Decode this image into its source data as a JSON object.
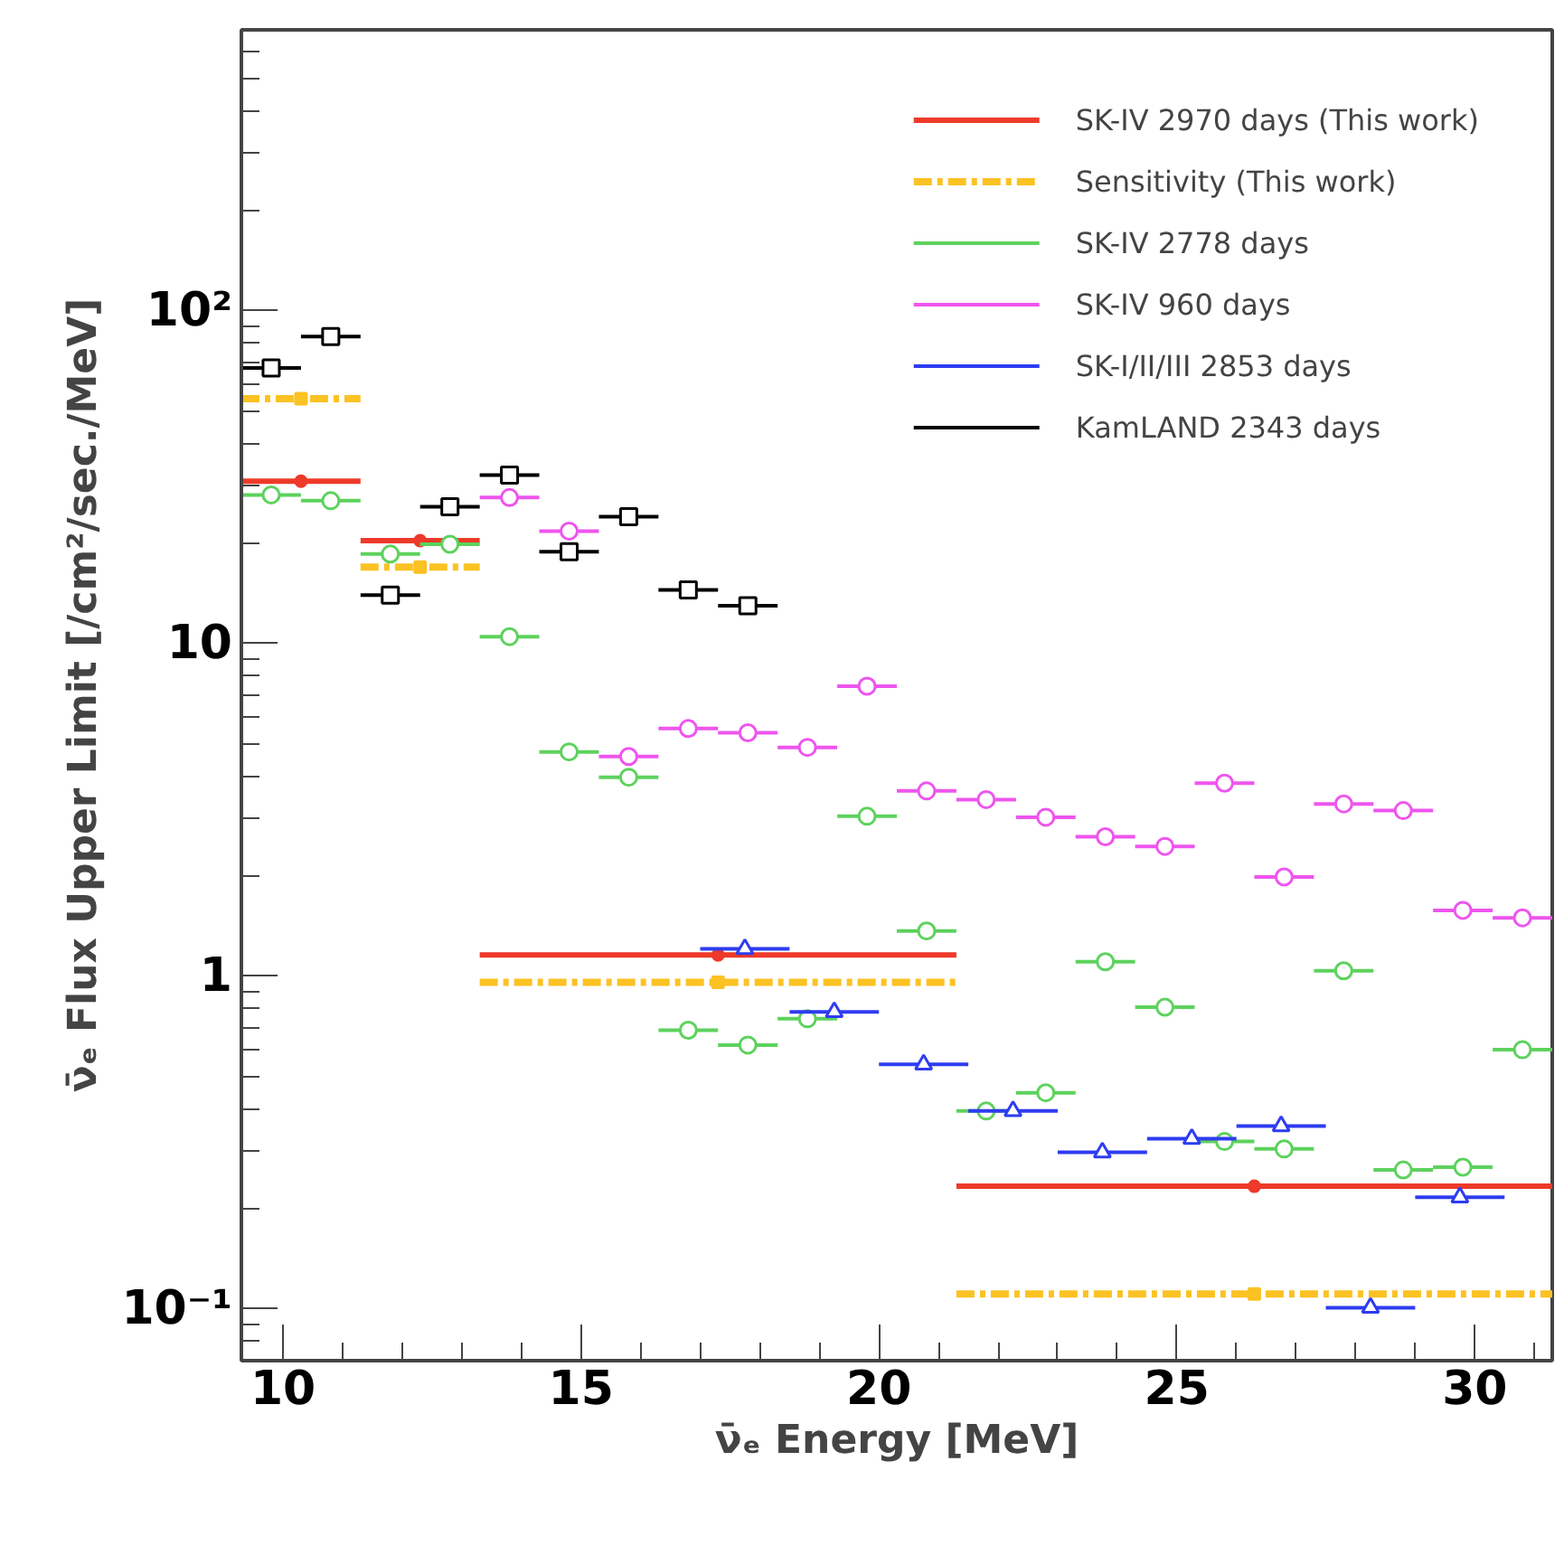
{
  "chart_data": {
    "type": "scatter",
    "xlabel": "ν̄ₑ Energy [MeV]",
    "ylabel": "ν̄ₑ Flux Upper Limit [/cm²/sec./MeV]",
    "log": "y",
    "xlim": [
      9.3,
      31.3
    ],
    "ylim": [
      0.07,
      700
    ],
    "xticks": [
      10,
      15,
      20,
      25,
      30
    ],
    "yticks": [
      {
        "value": 0.1,
        "label": "10⁻¹"
      },
      1,
      10,
      {
        "value": 100,
        "label": "10²"
      }
    ],
    "grid": false,
    "legend": "top right",
    "series": [
      {
        "name": "SK-IV 2970 days (This work)",
        "color": "#ee3a2a",
        "marker": "circle",
        "line_style": "solid",
        "x": [
          10.3,
          12.3,
          17.3,
          26.3
        ],
        "xerrors": [
          1,
          1,
          4,
          5
        ],
        "values": [
          30.8,
          20.4,
          1.16,
          0.234
        ]
      },
      {
        "name": "Sensitivity (This work)",
        "color": "#fbc223",
        "marker": "square",
        "line_style": "dashed",
        "x": [
          10.3,
          12.3,
          17.3,
          26.3
        ],
        "xerrors": [
          1,
          1,
          4,
          5
        ],
        "values": [
          54.5,
          17.0,
          0.96,
          0.111
        ]
      },
      {
        "name": "SK-IV 2778 days",
        "color": "#5dd25d",
        "marker": "circle",
        "line_style": "solid",
        "x": [
          9.8,
          10.8,
          11.8,
          12.8,
          13.8,
          14.8,
          15.8,
          16.8,
          17.8,
          18.8,
          19.8,
          20.8,
          21.8,
          22.8,
          23.8,
          24.8,
          25.8,
          26.8,
          27.8,
          28.8,
          29.8,
          30.8
        ],
        "xerrors": [
          0.5,
          0.5,
          0.5,
          0.5,
          0.5,
          0.5,
          0.5,
          0.5,
          0.5,
          0.5,
          0.5,
          0.5,
          0.5,
          0.5,
          0.5,
          0.5,
          0.5,
          0.5,
          0.5,
          0.5,
          0.5,
          0.5
        ],
        "values": [
          28.0,
          26.9,
          18.6,
          19.9,
          10.5,
          4.73,
          3.97,
          0.689,
          0.622,
          0.746,
          3.03,
          1.37,
          0.394,
          0.447,
          1.107,
          0.808,
          0.319,
          0.303,
          1.04,
          0.262,
          0.267,
          0.602
        ]
      },
      {
        "name": "SK-IV 960 days",
        "color": "#ee55ee",
        "marker": "circle",
        "line_style": "solid",
        "x": [
          13.8,
          14.8,
          15.8,
          16.8,
          17.8,
          18.8,
          19.8,
          20.8,
          21.8,
          22.8,
          23.8,
          24.8,
          25.8,
          26.8,
          27.8,
          28.8,
          29.8,
          30.8
        ],
        "xerrors": [
          0.5,
          0.5,
          0.5,
          0.5,
          0.5,
          0.5,
          0.5,
          0.5,
          0.5,
          0.5,
          0.5,
          0.5,
          0.5,
          0.5,
          0.5,
          0.5,
          0.5,
          0.5
        ],
        "values": [
          27.5,
          21.8,
          4.58,
          5.56,
          5.4,
          4.88,
          7.45,
          3.61,
          3.4,
          3.01,
          2.63,
          2.46,
          3.81,
          1.99,
          3.3,
          3.15,
          1.58,
          1.5
        ]
      },
      {
        "name": "SK-I/II/III 2853 days",
        "color": "#2e3cf0",
        "marker": "triangle",
        "line_style": "solid",
        "x": [
          17.75,
          19.25,
          20.75,
          22.25,
          23.75,
          25.25,
          26.75,
          28.25,
          29.75
        ],
        "xerrors": [
          0.75,
          0.75,
          0.75,
          0.75,
          0.75,
          0.75,
          0.75,
          0.75,
          0.75
        ],
        "values": [
          1.21,
          0.782,
          0.544,
          0.394,
          0.296,
          0.325,
          0.355,
          0.101,
          0.217
        ]
      },
      {
        "name": "KamLAND 2343 days",
        "color": "#000000",
        "marker": "square",
        "line_style": "solid",
        "x": [
          9.8,
          10.8,
          11.8,
          12.8,
          13.8,
          14.8,
          15.8,
          16.8,
          17.8
        ],
        "xerrors": [
          0.5,
          0.5,
          0.5,
          0.5,
          0.5,
          0.5,
          0.5,
          0.5,
          0.5
        ],
        "values": [
          67.4,
          83.8,
          14.0,
          25.8,
          32.1,
          18.9,
          24.1,
          14.5,
          13.0
        ]
      }
    ]
  }
}
